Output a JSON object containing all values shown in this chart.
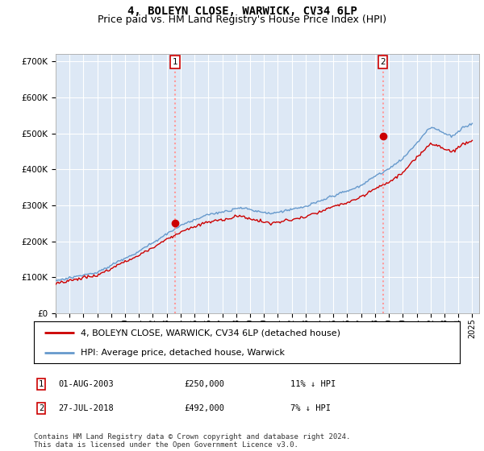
{
  "title": "4, BOLEYN CLOSE, WARWICK, CV34 6LP",
  "subtitle": "Price paid vs. HM Land Registry's House Price Index (HPI)",
  "ylabel_ticks": [
    "£0",
    "£100K",
    "£200K",
    "£300K",
    "£400K",
    "£500K",
    "£600K",
    "£700K"
  ],
  "ytick_values": [
    0,
    100000,
    200000,
    300000,
    400000,
    500000,
    600000,
    700000
  ],
  "ylim": [
    0,
    720000
  ],
  "xlim_start": 1995.0,
  "xlim_end": 2025.5,
  "purchase1_year": 2003.583,
  "purchase1_price": 250000,
  "purchase2_year": 2018.558,
  "purchase2_price": 492000,
  "legend_house": "4, BOLEYN CLOSE, WARWICK, CV34 6LP (detached house)",
  "legend_hpi": "HPI: Average price, detached house, Warwick",
  "table_row1": [
    "1",
    "01-AUG-2003",
    "£250,000",
    "11% ↓ HPI"
  ],
  "table_row2": [
    "2",
    "27-JUL-2018",
    "£492,000",
    "7% ↓ HPI"
  ],
  "footer": "Contains HM Land Registry data © Crown copyright and database right 2024.\nThis data is licensed under the Open Government Licence v3.0.",
  "line_color_house": "#cc0000",
  "line_color_hpi": "#6699cc",
  "vline_color": "#ff9999",
  "dot_color": "#cc0000",
  "background_color": "#ffffff",
  "plot_bg_color": "#dde8f5",
  "grid_color": "#ffffff",
  "title_fontsize": 10,
  "subtitle_fontsize": 9,
  "tick_fontsize": 7.5,
  "legend_fontsize": 8,
  "footer_fontsize": 6.5
}
